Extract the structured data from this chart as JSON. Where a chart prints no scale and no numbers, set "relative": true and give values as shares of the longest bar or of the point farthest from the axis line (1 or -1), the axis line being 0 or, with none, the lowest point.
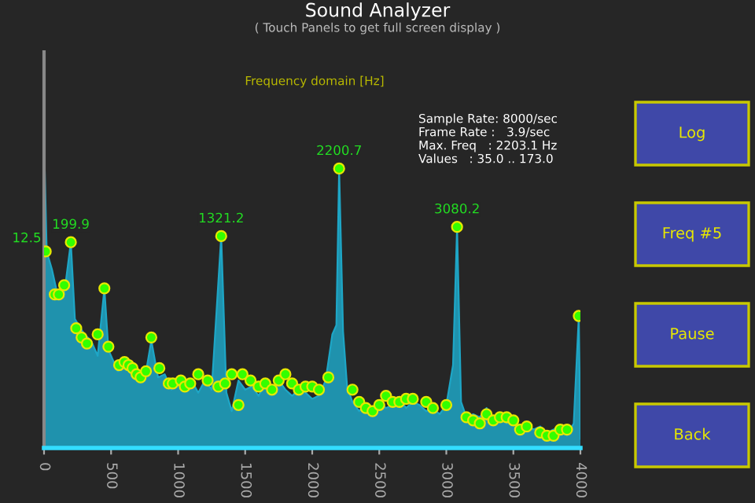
{
  "chart_data": {
    "type": "area",
    "title": "Sound Analyzer",
    "subtitle": "( Touch Panels to get full screen display )",
    "relative": true,
    "xlim": [
      0,
      4000
    ],
    "xticks": [
      0,
      500,
      1000,
      1500,
      2000,
      2500,
      3000,
      3500,
      4000
    ],
    "grid": false,
    "legend": false,
    "series": [
      {
        "color": "#1ea6c6",
        "x": [
          0,
          20,
          60,
          100,
          150,
          199.9,
          230,
          300,
          350,
          400,
          450,
          480,
          550,
          600,
          650,
          700,
          750,
          800,
          850,
          900,
          950,
          1000,
          1050,
          1100,
          1150,
          1200,
          1250,
          1321.2,
          1360,
          1400,
          1450,
          1500,
          1550,
          1600,
          1650,
          1700,
          1750,
          1800,
          1850,
          1900,
          1950,
          2000,
          2050,
          2100,
          2150,
          2180,
          2200.7,
          2230,
          2260,
          2300,
          2350,
          2400,
          2450,
          2500,
          2550,
          2600,
          2650,
          2700,
          2750,
          2800,
          2850,
          2900,
          2950,
          3000,
          3050,
          3080.2,
          3110,
          3150,
          3200,
          3250,
          3300,
          3350,
          3400,
          3450,
          3500,
          3550,
          3600,
          3650,
          3700,
          3750,
          3800,
          3850,
          3900,
          3950,
          3988,
          4000
        ],
        "values": [
          1.0,
          0.64,
          0.58,
          0.5,
          0.5,
          0.67,
          0.42,
          0.37,
          0.35,
          0.3,
          0.52,
          0.32,
          0.25,
          0.27,
          0.24,
          0.25,
          0.22,
          0.35,
          0.23,
          0.24,
          0.19,
          0.21,
          0.2,
          0.22,
          0.18,
          0.22,
          0.19,
          0.69,
          0.18,
          0.12,
          0.22,
          0.19,
          0.2,
          0.17,
          0.21,
          0.18,
          0.22,
          0.19,
          0.17,
          0.19,
          0.18,
          0.16,
          0.17,
          0.22,
          0.37,
          0.4,
          0.91,
          0.38,
          0.2,
          0.15,
          0.12,
          0.14,
          0.12,
          0.15,
          0.13,
          0.14,
          0.16,
          0.13,
          0.15,
          0.14,
          0.12,
          0.13,
          0.11,
          0.14,
          0.27,
          0.72,
          0.15,
          0.1,
          0.11,
          0.1,
          0.13,
          0.1,
          0.11,
          0.08,
          0.09,
          0.07,
          0.08,
          0.06,
          0.07,
          0.05,
          0.06,
          0.07,
          0.04,
          0.08,
          0.43,
          0.03
        ]
      },
      {
        "type": "scatter",
        "color": "#33ff00",
        "marker": "circle",
        "x": [
          12.5,
          80,
          110,
          150,
          199.9,
          240,
          280,
          320,
          400,
          450,
          480,
          560,
          600,
          630,
          660,
          690,
          720,
          760,
          800,
          860,
          930,
          960,
          1020,
          1050,
          1090,
          1150,
          1220,
          1300,
          1321.2,
          1350,
          1400,
          1450,
          1480,
          1540,
          1600,
          1650,
          1700,
          1750,
          1800,
          1850,
          1900,
          1950,
          2000,
          2050,
          2120,
          2200.7,
          2300,
          2350,
          2400,
          2450,
          2500,
          2550,
          2600,
          2650,
          2700,
          2750,
          2850,
          2900,
          3000,
          3080.2,
          3150,
          3200,
          3250,
          3300,
          3350,
          3400,
          3450,
          3500,
          3550,
          3600,
          3700,
          3750,
          3800,
          3850,
          3900,
          3988
        ],
        "values": [
          0.64,
          0.5,
          0.5,
          0.53,
          0.67,
          0.39,
          0.36,
          0.34,
          0.37,
          0.52,
          0.33,
          0.27,
          0.28,
          0.27,
          0.26,
          0.24,
          0.23,
          0.25,
          0.36,
          0.26,
          0.21,
          0.21,
          0.22,
          0.2,
          0.21,
          0.24,
          0.22,
          0.2,
          0.69,
          0.21,
          0.24,
          0.14,
          0.24,
          0.22,
          0.2,
          0.21,
          0.19,
          0.22,
          0.24,
          0.21,
          0.19,
          0.2,
          0.2,
          0.19,
          0.23,
          0.91,
          0.19,
          0.15,
          0.13,
          0.12,
          0.14,
          0.17,
          0.15,
          0.15,
          0.16,
          0.16,
          0.15,
          0.13,
          0.14,
          0.72,
          0.1,
          0.09,
          0.08,
          0.11,
          0.09,
          0.1,
          0.1,
          0.09,
          0.06,
          0.07,
          0.05,
          0.04,
          0.04,
          0.06,
          0.06,
          0.43
        ]
      }
    ],
    "annotations": [
      {
        "text": "12.5",
        "x": 12.5,
        "y": 0.64
      },
      {
        "text": "199.9",
        "x": 199.9,
        "y": 0.67
      },
      {
        "text": "1321.2",
        "x": 1321.2,
        "y": 0.69
      },
      {
        "text": "2200.7",
        "x": 2200.7,
        "y": 0.91
      },
      {
        "text": "3080.2",
        "x": 3080.2,
        "y": 0.72
      },
      "Frequency domain [Hz]",
      "Sample Rate: 8000/sec",
      "Frame Rate :   3.9/sec",
      "Max. Freq   : 2203.1 Hz",
      "Values   : 35.0 .. 173.0",
      "Log",
      "Freq #5",
      "Pause",
      "Back"
    ]
  }
}
